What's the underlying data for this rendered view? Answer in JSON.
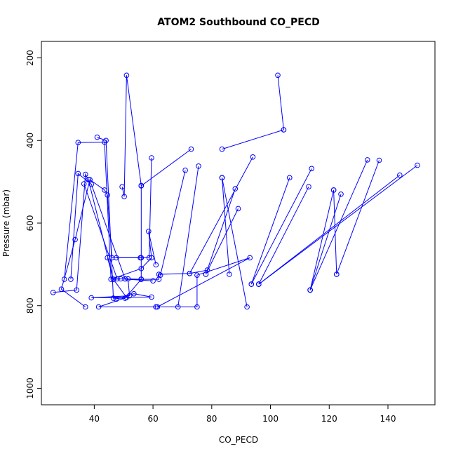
{
  "chart_data": {
    "type": "line",
    "title": "ATOM2 Southbound CO_PECD",
    "xlabel": "CO_PECD",
    "ylabel": "Pressure (mbar)",
    "xlim": [
      22,
      156
    ],
    "ylim": [
      1040,
      160
    ],
    "y_reversed": true,
    "x_ticks": [
      40,
      60,
      80,
      100,
      120,
      140
    ],
    "y_ticks": [
      200,
      400,
      600,
      800,
      1000
    ],
    "grid": false,
    "legend": "none",
    "colors": {
      "series": "#0000ff",
      "axis": "#000000"
    },
    "series": [
      {
        "points": [
          [
            37,
            803
          ],
          [
            28.8,
            760
          ],
          [
            33.5,
            640
          ],
          [
            38.5,
            495
          ],
          [
            43.5,
            520
          ],
          [
            44.5,
            532
          ],
          [
            46,
            684
          ],
          [
            56,
            684
          ]
        ]
      },
      {
        "points": [
          [
            26,
            768
          ],
          [
            34,
            762
          ],
          [
            37,
            482
          ],
          [
            38,
            495
          ],
          [
            46.5,
            736
          ],
          [
            51,
            780
          ],
          [
            41.5,
            803
          ],
          [
            61,
            803
          ]
        ]
      },
      {
        "points": [
          [
            32,
            736
          ],
          [
            34.5,
            480
          ],
          [
            39,
            506
          ],
          [
            50.5,
            735
          ],
          [
            60,
            740
          ],
          [
            49,
            735
          ],
          [
            46.5,
            736
          ],
          [
            44.5,
            684
          ]
        ]
      },
      {
        "points": [
          [
            29.8,
            736
          ],
          [
            34.5,
            405
          ],
          [
            43.5,
            404
          ],
          [
            45.7,
            736
          ],
          [
            56,
            710
          ],
          [
            59.5,
            684
          ],
          [
            58.5,
            620
          ],
          [
            61,
            701
          ]
        ]
      },
      {
        "points": [
          [
            36.5,
            505
          ],
          [
            47.8,
            735
          ],
          [
            50.5,
            735
          ],
          [
            56,
            736
          ],
          [
            62,
            736
          ],
          [
            62,
            724
          ],
          [
            72.5,
            722
          ],
          [
            78.5,
            714
          ]
        ]
      },
      {
        "points": [
          [
            47.5,
            784
          ],
          [
            53.5,
            771
          ],
          [
            59.5,
            779
          ],
          [
            39,
            781
          ],
          [
            52,
            776
          ],
          [
            51.5,
            735
          ]
        ]
      },
      {
        "points": [
          [
            41,
            392
          ],
          [
            44,
            400
          ],
          [
            46.5,
            782
          ],
          [
            50.5,
            782
          ],
          [
            56,
            736
          ]
        ]
      },
      {
        "points": [
          [
            49.5,
            512
          ],
          [
            50.2,
            536
          ],
          [
            51,
            242
          ],
          [
            56,
            509
          ],
          [
            56,
            736
          ]
        ]
      },
      {
        "points": [
          [
            59.5,
            442
          ],
          [
            58.7,
            684
          ],
          [
            55.7,
            684
          ],
          [
            47.5,
            684
          ]
        ]
      },
      {
        "points": [
          [
            71,
            472
          ],
          [
            62.5,
            726
          ]
        ]
      },
      {
        "points": [
          [
            73,
            421
          ],
          [
            56,
            510
          ]
        ]
      },
      {
        "points": [
          [
            61,
            803
          ],
          [
            75,
            803
          ],
          [
            75,
            726
          ],
          [
            93,
            684
          ],
          [
            61.5,
            803
          ]
        ]
      },
      {
        "points": [
          [
            75.5,
            462
          ],
          [
            68.5,
            803
          ]
        ]
      },
      {
        "points": [
          [
            83.5,
            421
          ],
          [
            104.5,
            374
          ]
        ]
      },
      {
        "points": [
          [
            83.5,
            490
          ],
          [
            92,
            803
          ]
        ]
      },
      {
        "points": [
          [
            86,
            724
          ],
          [
            83.5,
            490
          ]
        ]
      },
      {
        "points": [
          [
            88,
            517
          ],
          [
            78,
            724
          ]
        ]
      },
      {
        "points": [
          [
            89,
            565
          ],
          [
            78,
            724
          ]
        ]
      },
      {
        "points": [
          [
            94,
            440
          ],
          [
            72.5,
            722
          ]
        ]
      },
      {
        "points": [
          [
            102.5,
            242
          ],
          [
            104.5,
            374
          ]
        ]
      },
      {
        "points": [
          [
            106.5,
            490
          ],
          [
            93.5,
            748
          ]
        ]
      },
      {
        "points": [
          [
            113,
            512
          ],
          [
            96,
            748
          ]
        ]
      },
      {
        "points": [
          [
            114,
            468
          ],
          [
            93.5,
            748
          ]
        ]
      },
      {
        "points": [
          [
            113.5,
            762
          ],
          [
            124,
            530
          ]
        ]
      },
      {
        "points": [
          [
            121.5,
            520
          ],
          [
            113.5,
            762
          ]
        ]
      },
      {
        "points": [
          [
            122.5,
            724
          ],
          [
            121.5,
            520
          ]
        ]
      },
      {
        "points": [
          [
            133,
            447
          ],
          [
            113.5,
            762
          ]
        ]
      },
      {
        "points": [
          [
            137,
            448
          ],
          [
            122.5,
            724
          ]
        ]
      },
      {
        "points": [
          [
            144,
            484
          ],
          [
            96,
            748
          ]
        ]
      },
      {
        "points": [
          [
            150,
            460
          ],
          [
            96,
            748
          ]
        ]
      }
    ]
  }
}
